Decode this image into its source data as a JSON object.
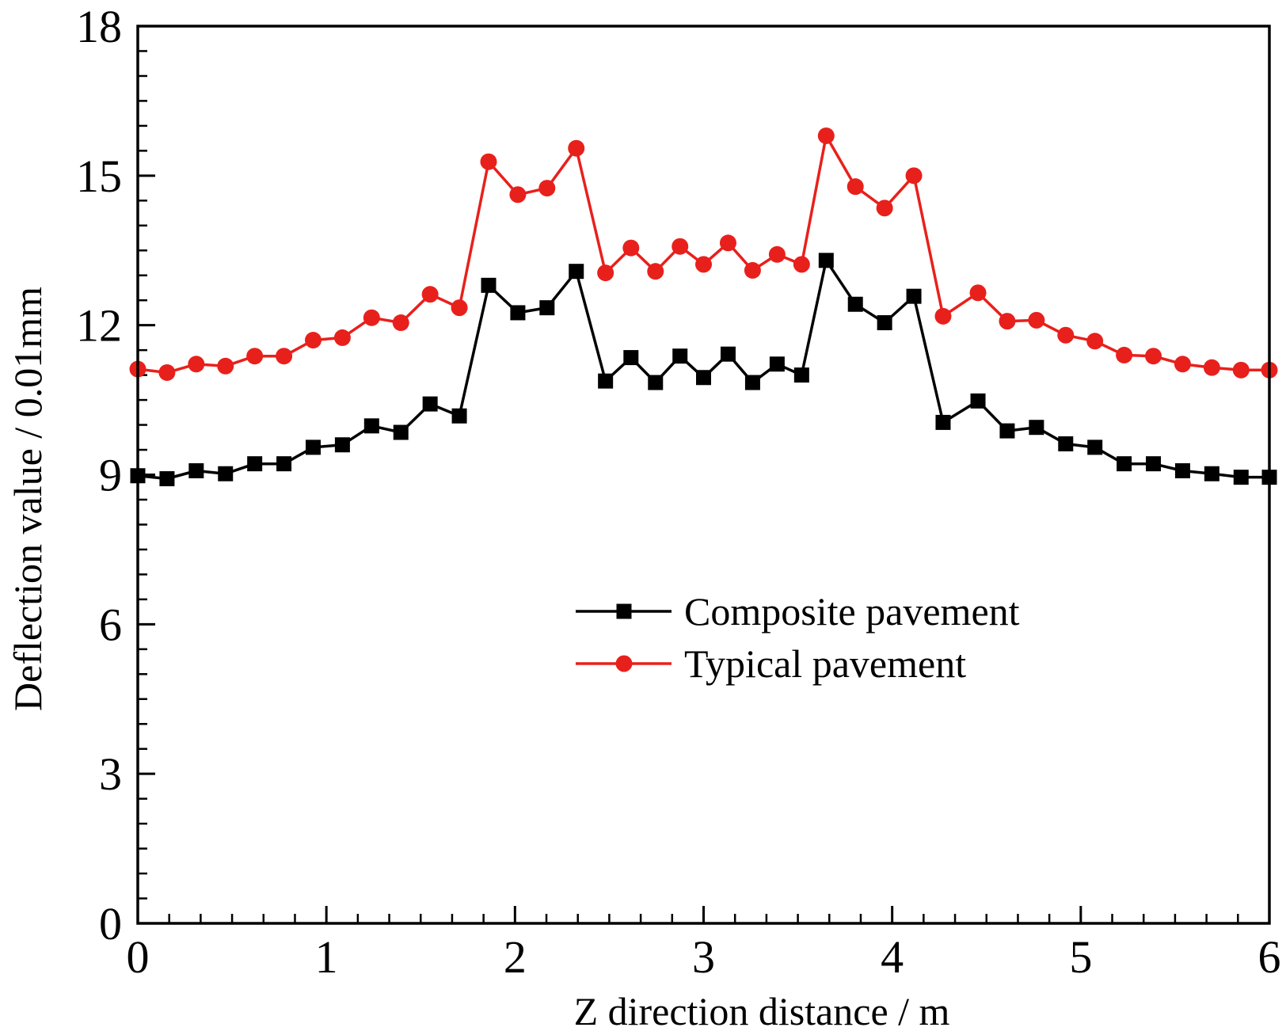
{
  "chart_data": {
    "type": "line",
    "title": "",
    "xlabel": "Z direction distance / m",
    "ylabel": "Deflection value / 0.01mm",
    "xlim": [
      0,
      6
    ],
    "ylim": [
      0,
      18
    ],
    "x_ticks": [
      0,
      1,
      2,
      3,
      4,
      5,
      6
    ],
    "x_tick_labels": [
      "0",
      "1",
      "2",
      "3",
      "4",
      "5",
      "6"
    ],
    "y_ticks": [
      0,
      3,
      6,
      9,
      12,
      15,
      18
    ],
    "y_tick_labels": [
      "0",
      "3",
      "6",
      "9",
      "12",
      "15",
      "18"
    ],
    "legend_position": "center-right",
    "series": [
      {
        "name": "Composite pavement",
        "color": "#000000",
        "marker": "square",
        "x": [
          0,
          0.155,
          0.31,
          0.465,
          0.62,
          0.775,
          0.93,
          1.085,
          1.24,
          1.395,
          1.55,
          1.705,
          1.86,
          2.015,
          2.17,
          2.325,
          2.48,
          2.615,
          2.745,
          2.875,
          3.0,
          3.13,
          3.26,
          3.39,
          3.52,
          3.65,
          3.805,
          3.96,
          4.115,
          4.27,
          4.455,
          4.61,
          4.765,
          4.92,
          5.075,
          5.23,
          5.385,
          5.54,
          5.695,
          5.85,
          6.0
        ],
        "values": [
          8.98,
          8.92,
          9.08,
          9.02,
          9.22,
          9.22,
          9.55,
          9.6,
          9.98,
          9.85,
          10.42,
          10.18,
          12.8,
          12.25,
          12.35,
          13.08,
          10.88,
          11.35,
          10.85,
          11.38,
          10.95,
          11.42,
          10.85,
          11.22,
          11.0,
          13.3,
          12.42,
          12.05,
          12.58,
          10.05,
          10.48,
          9.88,
          9.95,
          9.62,
          9.55,
          9.22,
          9.22,
          9.08,
          9.02,
          8.95,
          8.95
        ]
      },
      {
        "name": "Typical pavement",
        "color": "#e8201c",
        "marker": "circle",
        "x": [
          0,
          0.155,
          0.31,
          0.465,
          0.62,
          0.775,
          0.93,
          1.085,
          1.24,
          1.395,
          1.55,
          1.705,
          1.86,
          2.015,
          2.17,
          2.325,
          2.48,
          2.615,
          2.745,
          2.875,
          3.0,
          3.13,
          3.26,
          3.39,
          3.52,
          3.65,
          3.805,
          3.96,
          4.115,
          4.27,
          4.455,
          4.61,
          4.765,
          4.92,
          5.075,
          5.23,
          5.385,
          5.54,
          5.695,
          5.85,
          6.0
        ],
        "values": [
          11.12,
          11.05,
          11.22,
          11.18,
          11.38,
          11.38,
          11.7,
          11.75,
          12.15,
          12.05,
          12.62,
          12.35,
          15.28,
          14.62,
          14.75,
          15.55,
          13.05,
          13.55,
          13.08,
          13.58,
          13.22,
          13.65,
          13.1,
          13.42,
          13.22,
          15.8,
          14.78,
          14.35,
          15.0,
          12.18,
          12.65,
          12.08,
          12.1,
          11.8,
          11.68,
          11.4,
          11.38,
          11.22,
          11.15,
          11.1,
          11.1
        ]
      }
    ]
  }
}
